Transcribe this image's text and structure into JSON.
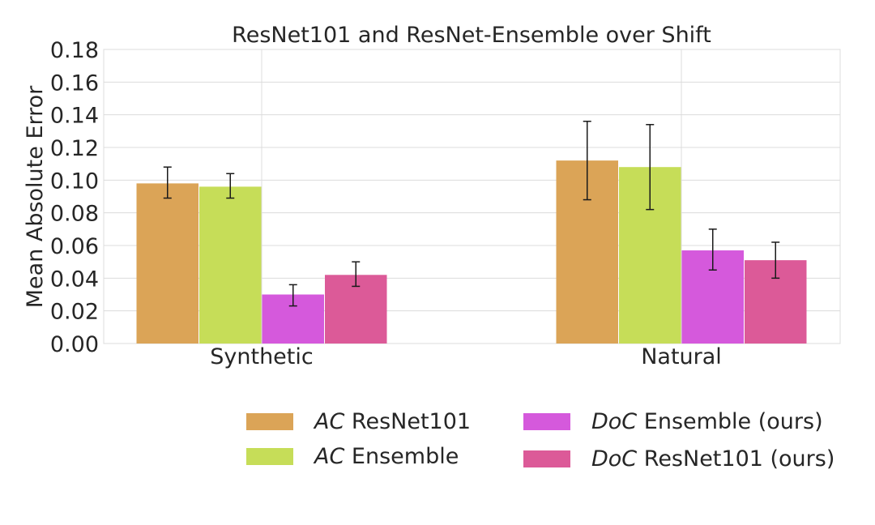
{
  "chart_data": {
    "type": "bar",
    "title": "ResNet101 and ResNet-Ensemble over Shift",
    "xlabel": "",
    "ylabel": "Mean Absolute Error",
    "ylim": [
      0,
      0.18
    ],
    "yticks": [
      "0.00",
      "0.02",
      "0.04",
      "0.06",
      "0.08",
      "0.10",
      "0.12",
      "0.14",
      "0.16",
      "0.18"
    ],
    "grid": true,
    "categories": [
      "Synthetic",
      "Natural"
    ],
    "series": [
      {
        "name": "AC ResNet101",
        "prefix": "AC",
        "suffix": "ResNet101",
        "color": "#dba457",
        "values": [
          0.098,
          0.112
        ],
        "err_low": [
          0.089,
          0.088
        ],
        "err_high": [
          0.108,
          0.136
        ]
      },
      {
        "name": "AC Ensemble",
        "prefix": "AC",
        "suffix": "Ensemble",
        "color": "#c6dd58",
        "values": [
          0.096,
          0.108
        ],
        "err_low": [
          0.089,
          0.082
        ],
        "err_high": [
          0.104,
          0.134
        ]
      },
      {
        "name": "DoC Ensemble (ours)",
        "prefix": "DoC",
        "suffix": "Ensemble (ours)",
        "color": "#d559dc",
        "values": [
          0.03,
          0.057
        ],
        "err_low": [
          0.023,
          0.045
        ],
        "err_high": [
          0.036,
          0.07
        ]
      },
      {
        "name": "DoC ResNet101 (ours)",
        "prefix": "DoC",
        "suffix": "ResNet101 (ours)",
        "color": "#dc5a98",
        "values": [
          0.042,
          0.051
        ],
        "err_low": [
          0.035,
          0.04
        ],
        "err_high": [
          0.05,
          0.062
        ]
      }
    ],
    "legend_position": "bottom-right"
  }
}
